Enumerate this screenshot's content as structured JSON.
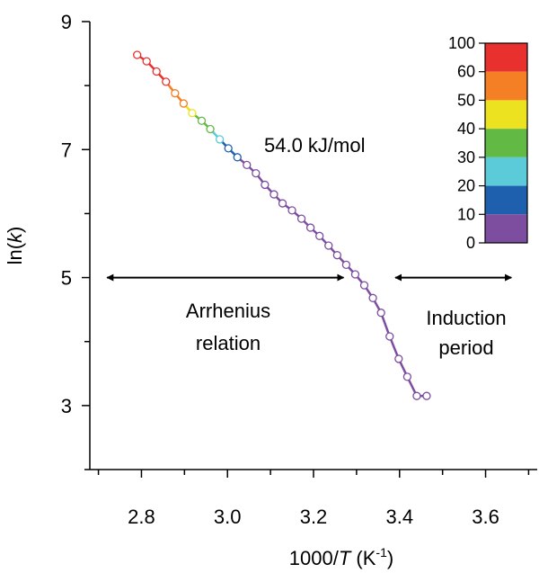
{
  "chart_data": {
    "type": "scatter",
    "title": "",
    "xlabel": {
      "prefix": "1000/",
      "var": "T",
      "unit_open": " (K",
      "sup": "-1",
      "unit_close": ")"
    },
    "ylabel": {
      "prefix": "ln(",
      "var": "k",
      "suffix": ")"
    },
    "xlim": [
      2.68,
      3.72
    ],
    "ylim": [
      2.0,
      9.0
    ],
    "x_ticks": [
      2.8,
      3.0,
      3.2,
      3.4,
      3.6
    ],
    "x_tick_labels": [
      "2.8",
      "3.0",
      "3.2",
      "3.4",
      "3.6"
    ],
    "y_ticks": [
      3,
      5,
      7,
      9
    ],
    "y_tick_labels": [
      "3",
      "5",
      "7",
      "9"
    ],
    "y_minor_ticks": [
      2,
      4,
      6,
      8
    ],
    "grid": false,
    "series": [
      {
        "values_axis": "x=1000/T, y=ln(k), c=color band",
        "x": [
          2.79,
          2.812,
          2.835,
          2.857,
          2.878,
          2.898,
          2.918,
          2.94,
          2.96,
          2.982,
          3.002,
          3.023,
          3.045,
          3.066,
          3.087,
          3.108,
          3.128,
          3.15,
          3.172,
          3.193,
          3.214,
          3.235,
          3.255,
          3.276,
          3.297,
          3.318,
          3.338,
          3.357,
          3.377,
          3.398,
          3.418,
          3.44,
          3.463
        ],
        "y": [
          8.48,
          8.38,
          8.22,
          8.06,
          7.88,
          7.72,
          7.57,
          7.45,
          7.32,
          7.16,
          7.02,
          6.88,
          6.76,
          6.63,
          6.45,
          6.3,
          6.16,
          6.05,
          5.92,
          5.78,
          5.65,
          5.5,
          5.35,
          5.2,
          5.05,
          4.88,
          4.68,
          4.45,
          4.08,
          3.73,
          3.45,
          3.15,
          3.15
        ],
        "c": [
          100,
          100,
          60,
          60,
          50,
          50,
          40,
          30,
          30,
          20,
          10,
          10,
          0,
          0,
          0,
          0,
          0,
          0,
          0,
          0,
          0,
          0,
          0,
          0,
          0,
          0,
          0,
          0,
          0,
          0,
          0,
          0,
          0
        ]
      }
    ],
    "colorbar": {
      "labels": [
        "100",
        "60",
        "50",
        "40",
        "30",
        "20",
        "10",
        "0"
      ],
      "colors": [
        "#e8312f",
        "#f47f24",
        "#ece21f",
        "#62b944",
        "#5ccbd9",
        "#1e5fae",
        "#7d4ea0"
      ]
    },
    "annotations": {
      "slope_label": "54.0 kJ/mol",
      "region1_line1": "Arrhenius",
      "region1_line2": "relation",
      "region2_line1": "Induction",
      "region2_line2": "period"
    },
    "arrows": [
      {
        "from": 2.72,
        "to": 3.27,
        "y": 5.0
      },
      {
        "from": 3.39,
        "to": 3.66,
        "y": 5.0
      }
    ]
  }
}
